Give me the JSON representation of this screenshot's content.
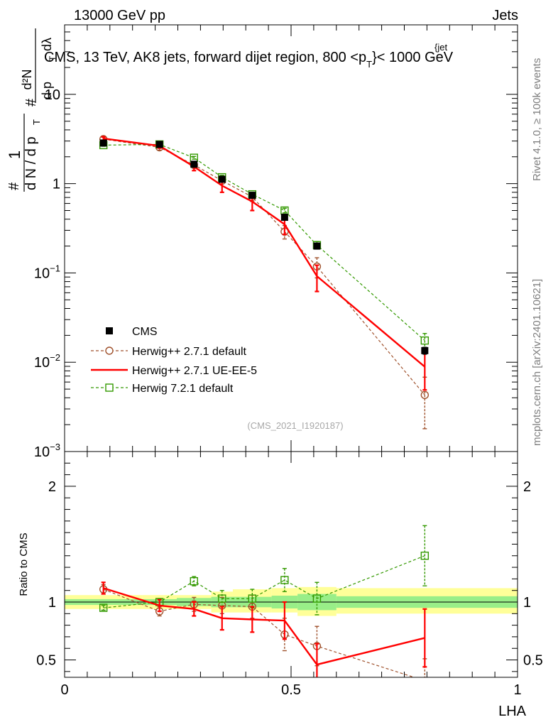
{
  "header": {
    "left": "13000 GeV pp",
    "right": "Jets",
    "title": "CMS, 13 TeV, AK8 jets, forward dijet region, 800 <p",
    "title_sup": "{jet",
    "title_sub": "T",
    "title_end": "}< 1000 GeV"
  },
  "side_texts": {
    "rivet": "Rivet 4.1.0, ≥ 100k events",
    "mcplots": "mcplots.cern.ch [arXiv:2401.10621]"
  },
  "analysis_tag": "(CMS_2021_I1920187)",
  "chart_data": [
    {
      "type": "scatter",
      "name": "main",
      "yscale": "log",
      "xlim": [
        0,
        1
      ],
      "ylim": [
        0.001,
        60
      ],
      "ylabel": {
        "num_hash": "#",
        "num_one": "1",
        "num_frac_num": "d²N",
        "num_frac_den_d": "d p",
        "num_frac_den_sub": "T",
        "num_frac_den_end": "dλ",
        "den_hash": "#",
        "den_text": "d N / d p",
        "den_sub": "T"
      },
      "yticks": [
        {
          "v": 0.001,
          "base": "10",
          "exp": "−3"
        },
        {
          "v": 0.01,
          "base": "10",
          "exp": "−2"
        },
        {
          "v": 0.1,
          "base": "10",
          "exp": "−1"
        },
        {
          "v": 1,
          "base": "1",
          "exp": ""
        },
        {
          "v": 10,
          "base": "10",
          "exp": ""
        }
      ],
      "series": [
        {
          "name": "CMS",
          "style": "data",
          "color": "#000000",
          "x": [
            0.0857,
            0.2095,
            0.2857,
            0.3476,
            0.4143,
            0.4857,
            0.5571,
            0.7952
          ],
          "y": [
            2.85,
            2.75,
            1.65,
            1.12,
            0.74,
            0.42,
            0.2,
            0.0135
          ],
          "err": [
            0.12,
            0.1,
            0.07,
            0.05,
            0.04,
            0.025,
            0.015,
            0.0012
          ]
        },
        {
          "name": "Herwig++ 2.7.1 default",
          "style": "circle-dashed",
          "color": "#a0522d",
          "x": [
            0.0857,
            0.2095,
            0.2857,
            0.3476,
            0.4143,
            0.4857,
            0.5571,
            0.7952
          ],
          "y": [
            3.15,
            2.55,
            1.62,
            1.08,
            0.71,
            0.29,
            0.118,
            0.0043
          ],
          "err": [
            0.15,
            0.18,
            0.12,
            0.09,
            0.08,
            0.05,
            0.03,
            0.0025
          ]
        },
        {
          "name": "Herwig++ 2.7.1 UE-EE-5",
          "style": "solid-line",
          "color": "#ff0000",
          "x": [
            0.0857,
            0.2095,
            0.2857,
            0.3476,
            0.4143,
            0.4857,
            0.5571,
            0.7952
          ],
          "y": [
            3.2,
            2.65,
            1.55,
            0.95,
            0.63,
            0.35,
            0.092,
            0.0089
          ],
          "err": [
            0.15,
            0.15,
            0.15,
            0.15,
            0.13,
            0.08,
            0.03,
            0.004
          ]
        },
        {
          "name": "Herwig 7.2.1 default",
          "style": "square-dashed",
          "color": "#339900",
          "x": [
            0.0857,
            0.2095,
            0.2857,
            0.3476,
            0.4143,
            0.4857,
            0.5571,
            0.7952
          ],
          "y": [
            2.7,
            2.75,
            1.95,
            1.18,
            0.76,
            0.5,
            0.205,
            0.0175
          ],
          "err": [
            0.08,
            0.08,
            0.07,
            0.06,
            0.04,
            0.03,
            0.02,
            0.0035
          ]
        }
      ]
    },
    {
      "type": "scatter",
      "name": "ratio",
      "ylabel": "Ratio to CMS",
      "xlabel": "LHA",
      "xlim": [
        0,
        1
      ],
      "ylim": [
        0.35,
        2.3
      ],
      "yticks": [
        {
          "v": 0.5,
          "label": "0.5"
        },
        {
          "v": 1,
          "label": "1"
        },
        {
          "v": 2,
          "label": "2"
        }
      ],
      "xticks": [
        {
          "v": 0,
          "label": "0"
        },
        {
          "v": 0.5,
          "label": "0.5"
        },
        {
          "v": 1,
          "label": "1"
        }
      ],
      "bins": [
        0,
        0.1714,
        0.2476,
        0.3238,
        0.3714,
        0.4571,
        0.5143,
        0.6,
        1.0
      ],
      "band_total": [
        [
          0.94,
          1.06
        ],
        [
          0.94,
          1.06
        ],
        [
          0.94,
          1.06
        ],
        [
          0.91,
          1.09
        ],
        [
          0.91,
          1.11
        ],
        [
          0.91,
          1.12
        ],
        [
          0.88,
          1.13
        ],
        [
          0.9,
          1.12
        ]
      ],
      "band_stat": [
        [
          0.975,
          1.025
        ],
        [
          0.975,
          1.025
        ],
        [
          0.965,
          1.035
        ],
        [
          0.955,
          1.045
        ],
        [
          0.955,
          1.045
        ],
        [
          0.945,
          1.055
        ],
        [
          0.93,
          1.07
        ],
        [
          0.95,
          1.05
        ]
      ],
      "series": [
        {
          "name": "Herwig++ 2.7.1 default",
          "style": "circle-dashed",
          "color": "#a0522d",
          "x": [
            0.0857,
            0.2095,
            0.2857,
            0.3476,
            0.4143,
            0.4857,
            0.5571,
            0.7952
          ],
          "y": [
            1.11,
            0.92,
            0.98,
            0.97,
            0.96,
            0.72,
            0.62,
            0.32
          ],
          "err": [
            0.04,
            0.04,
            0.06,
            0.07,
            0.1,
            0.14,
            0.17,
            0.19
          ]
        },
        {
          "name": "Herwig++ 2.7.1 UE-EE-5",
          "style": "solid-line",
          "color": "#ff0000",
          "x": [
            0.0857,
            0.2095,
            0.2857,
            0.3476,
            0.4143,
            0.4857,
            0.5571,
            0.7952
          ],
          "y": [
            1.12,
            0.97,
            0.94,
            0.86,
            0.85,
            0.84,
            0.46,
            0.69
          ],
          "err": [
            0.05,
            0.05,
            0.06,
            0.1,
            0.11,
            0.16,
            0.18,
            0.25
          ]
        },
        {
          "name": "Herwig 7.2.1 default",
          "style": "square-dashed",
          "color": "#339900",
          "x": [
            0.0857,
            0.2095,
            0.2857,
            0.3476,
            0.4143,
            0.4857,
            0.5571,
            0.7952
          ],
          "y": [
            0.95,
            1.0,
            1.18,
            1.03,
            1.03,
            1.19,
            1.03,
            1.4
          ],
          "err": [
            0.02,
            0.03,
            0.04,
            0.07,
            0.08,
            0.1,
            0.14,
            0.26
          ]
        }
      ]
    }
  ]
}
